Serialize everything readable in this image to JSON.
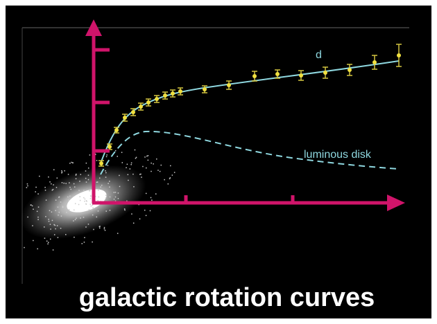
{
  "slide": {
    "title": "galactic rotation curves",
    "labels": {
      "observed": "d",
      "disk": "luminous disk"
    }
  }
}
